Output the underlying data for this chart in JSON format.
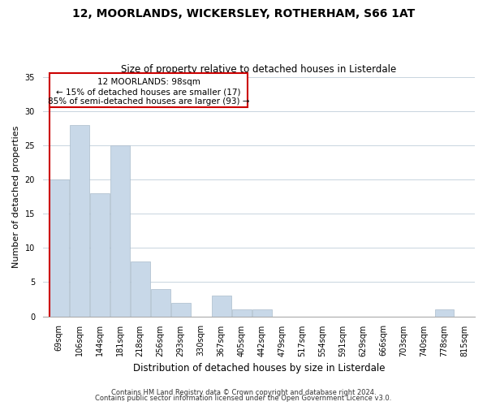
{
  "title": "12, MOORLANDS, WICKERSLEY, ROTHERHAM, S66 1AT",
  "subtitle": "Size of property relative to detached houses in Listerdale",
  "xlabel": "Distribution of detached houses by size in Listerdale",
  "ylabel": "Number of detached properties",
  "footer_line1": "Contains HM Land Registry data © Crown copyright and database right 2024.",
  "footer_line2": "Contains public sector information licensed under the Open Government Licence v3.0.",
  "bin_labels": [
    "69sqm",
    "106sqm",
    "144sqm",
    "181sqm",
    "218sqm",
    "256sqm",
    "293sqm",
    "330sqm",
    "367sqm",
    "405sqm",
    "442sqm",
    "479sqm",
    "517sqm",
    "554sqm",
    "591sqm",
    "629sqm",
    "666sqm",
    "703sqm",
    "740sqm",
    "778sqm",
    "815sqm"
  ],
  "bar_values": [
    20,
    28,
    18,
    25,
    8,
    4,
    2,
    0,
    3,
    1,
    1,
    0,
    0,
    0,
    0,
    0,
    0,
    0,
    0,
    1,
    0
  ],
  "bar_color": "#c8d8e8",
  "bar_edgecolor": "#aabccc",
  "marker_line_color": "#cc0000",
  "annotation_line1": "12 MOORLANDS: 98sqm",
  "annotation_line2": "← 15% of detached houses are smaller (17)",
  "annotation_line3": "85% of semi-detached houses are larger (93) →",
  "box_color": "#cc0000",
  "ylim": [
    0,
    35
  ],
  "yticks": [
    0,
    5,
    10,
    15,
    20,
    25,
    30,
    35
  ],
  "background_color": "#ffffff",
  "grid_color": "#c8d4de",
  "title_fontsize": 10,
  "subtitle_fontsize": 8.5,
  "ylabel_fontsize": 8,
  "xlabel_fontsize": 8.5,
  "tick_fontsize": 7,
  "footer_fontsize": 6,
  "annot_fontsize": 7.5
}
